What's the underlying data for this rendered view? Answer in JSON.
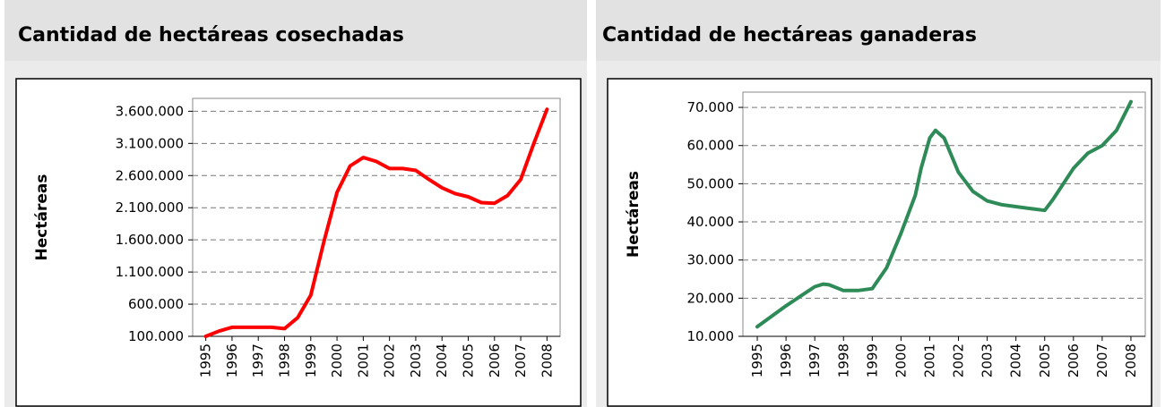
{
  "chart_data": [
    {
      "type": "line",
      "title": "Cantidad de hectáreas cosechadas",
      "ylabel": "Hectáreas",
      "color": "#ff0000",
      "x": [
        1995,
        1995.5,
        1996,
        1996.5,
        1997,
        1997.5,
        1998,
        1998.5,
        1999,
        1999.5,
        2000,
        2000.5,
        2001,
        2001.5,
        2002,
        2002.5,
        2003,
        2003.5,
        2004,
        2004.5,
        2005,
        2005.5,
        2006,
        2006.5,
        2007,
        2007.5,
        2008
      ],
      "values": [
        100000,
        180000,
        240000,
        240000,
        240000,
        240000,
        220000,
        390000,
        740000,
        1570000,
        2340000,
        2750000,
        2880000,
        2820000,
        2710000,
        2710000,
        2680000,
        2540000,
        2410000,
        2320000,
        2270000,
        2180000,
        2170000,
        2290000,
        2540000,
        3100000,
        3630000
      ],
      "xlim": [
        1994.5,
        2008.5
      ],
      "xticks": [
        1995,
        1996,
        1997,
        1998,
        1999,
        2000,
        2001,
        2002,
        2003,
        2004,
        2005,
        2006,
        2007,
        2008
      ],
      "ylim": [
        100000,
        3800000
      ],
      "yticks": [
        {
          "value": 100000,
          "label": "100.000"
        },
        {
          "value": 600000,
          "label": "600.000"
        },
        {
          "value": 1100000,
          "label": "1.100.000"
        },
        {
          "value": 1600000,
          "label": "1.600.000"
        },
        {
          "value": 2100000,
          "label": "2.100.000"
        },
        {
          "value": 2600000,
          "label": "2.600.000"
        },
        {
          "value": 3100000,
          "label": "3.100.000"
        },
        {
          "value": 3600000,
          "label": "3.600.000"
        }
      ],
      "grid": true
    },
    {
      "type": "line",
      "title": "Cantidad de hectáreas ganaderas",
      "ylabel": "Hectáreas",
      "color": "#2e8b57",
      "x": [
        1995,
        1996,
        1996.5,
        1997,
        1997.3,
        1997.5,
        1998,
        1998.5,
        1999,
        1999.5,
        2000,
        2000.5,
        2000.7,
        2001,
        2001.2,
        2001.5,
        2002,
        2002.5,
        2003,
        2003.5,
        2004,
        2004.5,
        2005,
        2005.3,
        2006,
        2006.5,
        2007,
        2007.5,
        2008
      ],
      "values": [
        12500,
        18000,
        20500,
        23000,
        23700,
        23500,
        22000,
        22000,
        22500,
        28000,
        37000,
        47000,
        54000,
        62000,
        64000,
        62000,
        53000,
        48000,
        45500,
        44500,
        44000,
        43500,
        43000,
        46000,
        54000,
        58000,
        60000,
        64000,
        71500
      ],
      "xlim": [
        1994.5,
        2008.5
      ],
      "xticks": [
        1995,
        1996,
        1997,
        1998,
        1999,
        2000,
        2001,
        2002,
        2003,
        2004,
        2005,
        2006,
        2007,
        2008
      ],
      "ylim": [
        10000,
        74000
      ],
      "yticks": [
        {
          "value": 10000,
          "label": "10.000"
        },
        {
          "value": 20000,
          "label": "20.000"
        },
        {
          "value": 30000,
          "label": "30.000"
        },
        {
          "value": 40000,
          "label": "40.000"
        },
        {
          "value": 50000,
          "label": "50.000"
        },
        {
          "value": 60000,
          "label": "60.000"
        },
        {
          "value": 70000,
          "label": "70.000"
        }
      ],
      "grid": true
    }
  ]
}
